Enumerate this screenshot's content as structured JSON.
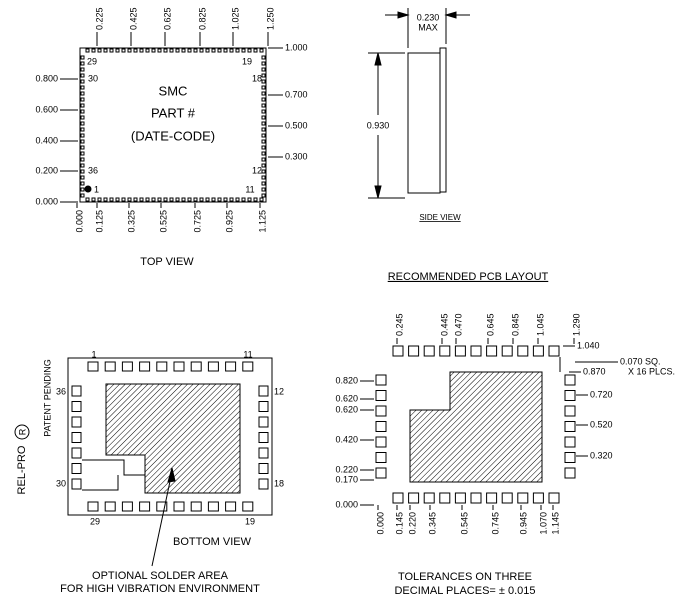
{
  "top_view": {
    "labels": [
      "SMC",
      "PART #",
      "(DATE-CODE)"
    ],
    "pins": [
      "29",
      "19",
      "30",
      "18",
      "36",
      "12",
      "1",
      "11"
    ],
    "x_dims_top": [
      "0.225",
      "0.425",
      "0.625",
      "0.825",
      "1.025",
      "1.250"
    ],
    "y_dims_left": [
      "0.800",
      "0.600",
      "0.400",
      "0.200",
      "0.000"
    ],
    "y_dims_right": [
      "1.000",
      "0.700",
      "0.500",
      "0.300"
    ],
    "x_dims_bottom": [
      "0.000",
      "0.125",
      "0.325",
      "0.525",
      "0.725",
      "0.925",
      "1.125"
    ],
    "caption": "TOP VIEW"
  },
  "side_view": {
    "width": "0.230",
    "width_note": "MAX",
    "height": "0.930",
    "caption": "SIDE VIEW"
  },
  "bottom_view": {
    "pins": [
      "1",
      "11",
      "36",
      "12",
      "30",
      "18",
      "29",
      "19"
    ],
    "caption": "BOTTOM VIEW",
    "note": [
      "OPTIONAL SOLDER AREA",
      "FOR HIGH VIBRATION ENVIRONMENT"
    ]
  },
  "brand": {
    "name": "REL-PRO",
    "mark": "R",
    "status": "PATENT PENDING"
  },
  "pcb_layout": {
    "title": "RECOMMENDED PCB LAYOUT",
    "x_dims_top": [
      "0.245",
      "0.445",
      "0.470",
      "0.645",
      "0.845",
      "1.045",
      "1.290"
    ],
    "right_dims": [
      "1.040",
      "0.870",
      "0.720",
      "0.520",
      "0.320"
    ],
    "pad_note": [
      "0.070 SQ.",
      "X 16 PLCS."
    ],
    "left_dims": [
      "0.820",
      "0.620",
      "0.620",
      "0.420",
      "0.220",
      "0.170",
      "0.000"
    ],
    "x_dims_bottom": [
      "0.000",
      "0.145",
      "0.220",
      "0.345",
      "0.545",
      "0.745",
      "0.945",
      "1.070",
      "1.145"
    ],
    "tolerance": [
      "TOLERANCES ON THREE",
      "DECIMAL PLACES= ± 0.015"
    ]
  }
}
